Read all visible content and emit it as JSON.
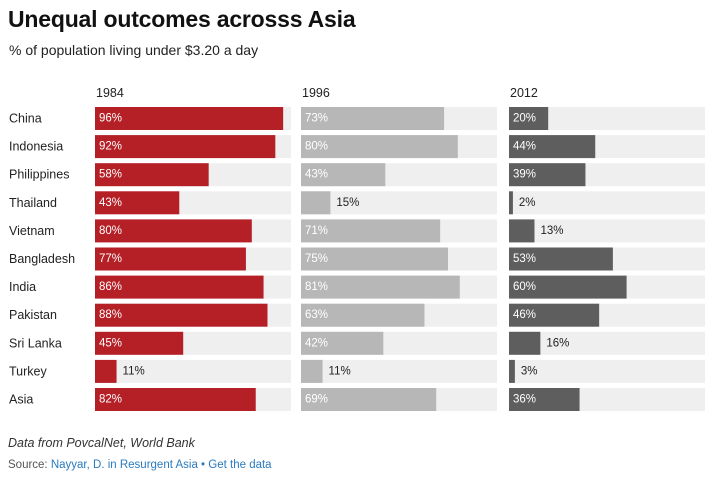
{
  "header": {
    "title": "Unequal outcomes acrosss Asia",
    "subtitle": "% of population living under $3.20 a day"
  },
  "footer": {
    "note": "Data from PovcalNet, World Bank",
    "source_label": "Source: ",
    "source_link": "Nayyar, D. in Resurgent Asia",
    "separator": "•",
    "data_link": "Get the data"
  },
  "colors": {
    "1984": "#b51f26",
    "1996": "#b7b7b7",
    "2012": "#5e5e5e",
    "track": "#efefef"
  },
  "chart_data": {
    "type": "bar",
    "orientation": "horizontal",
    "title": "Unequal outcomes acrosss Asia",
    "subtitle": "% of population living under $3.20 a day",
    "categories": [
      "China",
      "Indonesia",
      "Philippines",
      "Thailand",
      "Vietnam",
      "Bangladesh",
      "India",
      "Pakistan",
      "Sri Lanka",
      "Turkey",
      "Asia"
    ],
    "xlim": [
      0,
      100
    ],
    "value_suffix": "%",
    "series": [
      {
        "name": "1984",
        "values": [
          96,
          92,
          58,
          43,
          80,
          77,
          86,
          88,
          45,
          11,
          82
        ]
      },
      {
        "name": "1996",
        "values": [
          73,
          80,
          43,
          15,
          71,
          75,
          81,
          63,
          42,
          11,
          69
        ]
      },
      {
        "name": "2012",
        "values": [
          20,
          44,
          39,
          2,
          13,
          53,
          60,
          46,
          16,
          3,
          36
        ]
      }
    ]
  }
}
